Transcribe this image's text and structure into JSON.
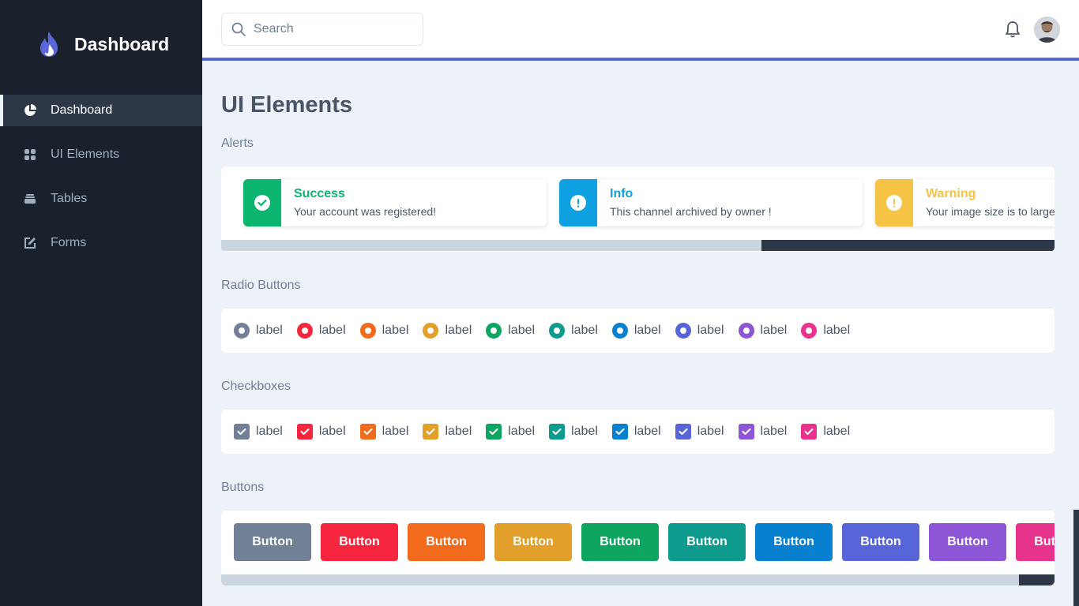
{
  "brand": {
    "title": "Dashboard",
    "logo": "flame-logo"
  },
  "sidebar": {
    "items": [
      {
        "label": "Dashboard",
        "icon": "pie-chart-icon",
        "active": true
      },
      {
        "label": "UI Elements",
        "icon": "grid-icon",
        "active": false
      },
      {
        "label": "Tables",
        "icon": "layers-icon",
        "active": false
      },
      {
        "label": "Forms",
        "icon": "edit-icon",
        "active": false
      }
    ]
  },
  "header": {
    "search": {
      "placeholder": "Search",
      "value": ""
    },
    "accent": "#5a67d8"
  },
  "main": {
    "title": "UI Elements",
    "alerts": {
      "label": "Alerts",
      "items": [
        {
          "title": "Success",
          "message": "Your account was registered!",
          "color": "#0bb46f",
          "icon": "check-circle-icon"
        },
        {
          "title": "Info",
          "message": "This channel archived by owner !",
          "color": "#0ea0e0",
          "icon": "exclamation-circle-icon"
        },
        {
          "title": "Warning",
          "message": "Your image size is to large",
          "color": "#f6c445",
          "icon": "exclamation-circle-icon"
        }
      ]
    },
    "radios": {
      "label": "Radio Buttons",
      "items": [
        {
          "label": "label",
          "color": "#718096"
        },
        {
          "label": "label",
          "color": "#f5263d"
        },
        {
          "label": "label",
          "color": "#f26a1b"
        },
        {
          "label": "label",
          "color": "#e29f2a"
        },
        {
          "label": "label",
          "color": "#0da55f"
        },
        {
          "label": "label",
          "color": "#0f9a8e"
        },
        {
          "label": "label",
          "color": "#0780d0"
        },
        {
          "label": "label",
          "color": "#5865d8"
        },
        {
          "label": "label",
          "color": "#8c56d6"
        },
        {
          "label": "label",
          "color": "#e8338d"
        }
      ]
    },
    "checkboxes": {
      "label": "Checkboxes",
      "items": [
        {
          "label": "label",
          "color": "#718096"
        },
        {
          "label": "label",
          "color": "#f5263d"
        },
        {
          "label": "label",
          "color": "#f26a1b"
        },
        {
          "label": "label",
          "color": "#e29f2a"
        },
        {
          "label": "label",
          "color": "#0da55f"
        },
        {
          "label": "label",
          "color": "#0f9a8e"
        },
        {
          "label": "label",
          "color": "#0780d0"
        },
        {
          "label": "label",
          "color": "#5865d8"
        },
        {
          "label": "label",
          "color": "#8c56d6"
        },
        {
          "label": "label",
          "color": "#e8338d"
        }
      ]
    },
    "buttons": {
      "label": "Buttons",
      "items": [
        {
          "label": "Button",
          "color": "#718096"
        },
        {
          "label": "Button",
          "color": "#f5263d"
        },
        {
          "label": "Button",
          "color": "#f26a1b"
        },
        {
          "label": "Button",
          "color": "#e29f2a"
        },
        {
          "label": "Button",
          "color": "#0da55f"
        },
        {
          "label": "Button",
          "color": "#0f9a8e"
        },
        {
          "label": "Button",
          "color": "#0780d0"
        },
        {
          "label": "Button",
          "color": "#5865d8"
        },
        {
          "label": "Button",
          "color": "#8c56d6"
        },
        {
          "label": "Button",
          "color": "#e8338d"
        }
      ]
    }
  }
}
